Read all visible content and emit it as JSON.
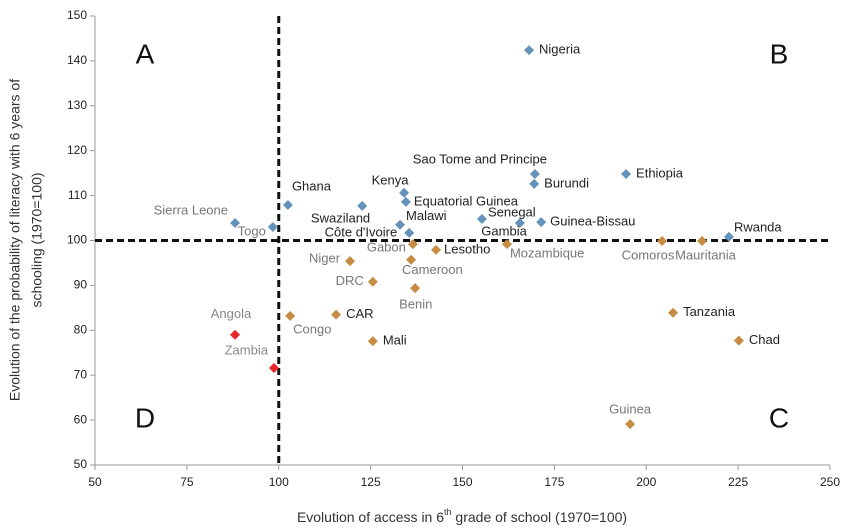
{
  "chart_data": {
    "type": "scatter",
    "xlabel": {
      "before": "Evolution of access in 6",
      "sup": "th",
      "after": " grade of school (1970=100)"
    },
    "ylabel": [
      "Evolution of the probability of literacy with 6 years of",
      "schooling (1970=100)"
    ],
    "xlim": [
      50,
      250
    ],
    "xticks": [
      50,
      75,
      100,
      125,
      150,
      175,
      200,
      225,
      250
    ],
    "ylim": [
      50,
      150
    ],
    "yticks": [
      50,
      60,
      70,
      80,
      90,
      100,
      110,
      120,
      130,
      140,
      150
    ],
    "reference_lines": {
      "x": 100,
      "y": 100
    },
    "quadrants": [
      "A",
      "B",
      "C",
      "D"
    ],
    "points": [
      {
        "label": "Nigeria",
        "x": 168.1,
        "y": 142.4,
        "color": "#6393bb",
        "label_color": "#222"
      },
      {
        "label": "Ethiopia",
        "x": 194.5,
        "y": 114.8,
        "color": "#6393bb",
        "label_color": "#222"
      },
      {
        "label": "Sao Tome and Principe",
        "x": 169.7,
        "y": 114.8,
        "color": "#6393bb",
        "label_color": "#222"
      },
      {
        "label": "Burundi",
        "x": 169.5,
        "y": 112.6,
        "color": "#6393bb",
        "label_color": "#222"
      },
      {
        "label": "Kenya",
        "x": 134.1,
        "y": 110.6,
        "color": "#6393bb",
        "label_color": "#222"
      },
      {
        "label": "Equatorial Guinea",
        "x": 134.6,
        "y": 108.6,
        "color": "#6393bb",
        "label_color": "#222"
      },
      {
        "label": "Ghana",
        "x": 102.5,
        "y": 107.9,
        "color": "#6393bb",
        "label_color": "#222"
      },
      {
        "label": "Swaziland",
        "x": 122.7,
        "y": 107.7,
        "color": "#6393bb",
        "label_color": "#222"
      },
      {
        "label": "Sierra Leone",
        "x": 88.1,
        "y": 103.9,
        "color": "#6393bb",
        "label_color": "#777"
      },
      {
        "label": "Togo",
        "x": 98.4,
        "y": 103.0,
        "color": "#6393bb",
        "label_color": "#777"
      },
      {
        "label": "Malawi",
        "x": 133.0,
        "y": 103.5,
        "color": "#6393bb",
        "label_color": "#222"
      },
      {
        "label": "Senegal",
        "x": 155.3,
        "y": 104.8,
        "color": "#6393bb",
        "label_color": "#222"
      },
      {
        "label": "Guinea-Bissau",
        "x": 171.4,
        "y": 104.1,
        "color": "#6393bb",
        "label_color": "#222"
      },
      {
        "label": "Gambia",
        "x": 165.6,
        "y": 103.9,
        "color": "#6393bb",
        "label_color": "#222"
      },
      {
        "label": "Côte d'Ivoire",
        "x": 135.5,
        "y": 101.7,
        "color": "#6393bb",
        "label_color": "#222"
      },
      {
        "label": "Rwanda",
        "x": 222.5,
        "y": 100.8,
        "color": "#6393bb",
        "label_color": "#222"
      },
      {
        "label": "Gabon",
        "x": 136.5,
        "y": 99.2,
        "color": "#c68c44",
        "label_color": "#777"
      },
      {
        "label": "Lesotho",
        "x": 142.8,
        "y": 97.9,
        "color": "#c68c44",
        "label_color": "#222"
      },
      {
        "label": "Mozambique",
        "x": 162.1,
        "y": 99.2,
        "color": "#c68c44",
        "label_color": "#777"
      },
      {
        "label": "Comoros",
        "x": 204.3,
        "y": 99.9,
        "color": "#c68c44",
        "label_color": "#777"
      },
      {
        "label": "Mauritania",
        "x": 215.2,
        "y": 99.9,
        "color": "#c68c44",
        "label_color": "#777"
      },
      {
        "label": "Niger",
        "x": 119.4,
        "y": 95.4,
        "color": "#c68c44",
        "label_color": "#777"
      },
      {
        "label": "Cameroon",
        "x": 136.0,
        "y": 95.7,
        "color": "#c68c44",
        "label_color": "#777"
      },
      {
        "label": "DRC",
        "x": 125.6,
        "y": 90.8,
        "color": "#c68c44",
        "label_color": "#777"
      },
      {
        "label": "Benin",
        "x": 137.1,
        "y": 89.4,
        "color": "#c68c44",
        "label_color": "#777"
      },
      {
        "label": "Congo",
        "x": 103.1,
        "y": 83.2,
        "color": "#c68c44",
        "label_color": "#777"
      },
      {
        "label": "CAR",
        "x": 115.6,
        "y": 83.5,
        "color": "#c68c44",
        "label_color": "#222"
      },
      {
        "label": "Tanzania",
        "x": 207.3,
        "y": 83.9,
        "color": "#c68c44",
        "label_color": "#222"
      },
      {
        "label": "Mali",
        "x": 125.6,
        "y": 77.6,
        "color": "#c68c44",
        "label_color": "#222"
      },
      {
        "label": "Chad",
        "x": 225.2,
        "y": 77.7,
        "color": "#c68c44",
        "label_color": "#222"
      },
      {
        "label": "Guinea",
        "x": 195.6,
        "y": 59.1,
        "color": "#c68c44",
        "label_color": "#777"
      },
      {
        "label": "Angola",
        "x": 88.1,
        "y": 79.0,
        "color": "#e8262a",
        "label_color": "#888"
      },
      {
        "label": "Zambia",
        "x": 98.7,
        "y": 71.6,
        "color": "#e8262a",
        "label_color": "#888"
      }
    ]
  }
}
